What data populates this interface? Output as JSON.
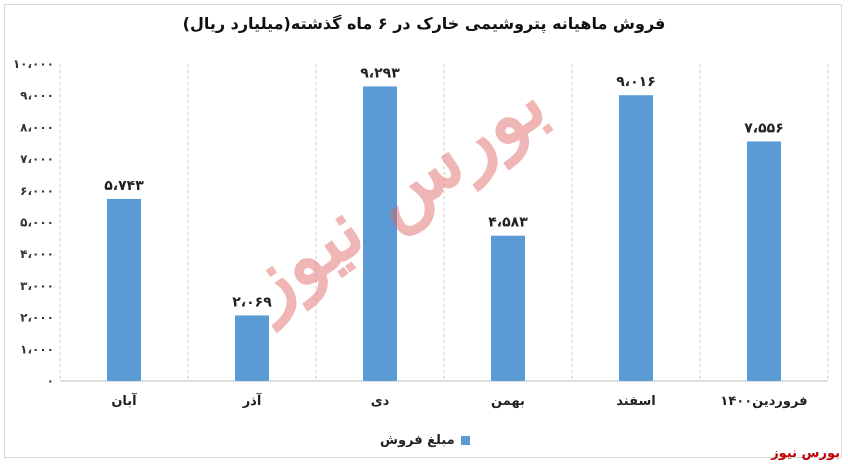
{
  "chart_data": {
    "type": "bar",
    "title": "فروش ماهیانه پتروشیمی خارک در ۶ ماه گذشته(میلیارد ریال)",
    "categories": [
      "آبان",
      "آذر",
      "دی",
      "بهمن",
      "اسفند",
      "فروردین۱۴۰۰"
    ],
    "series": [
      {
        "name": "مبلغ فروش",
        "values": [
          5743,
          2069,
          9293,
          4583,
          9016,
          7556
        ]
      }
    ],
    "data_labels": [
      "۵،۷۴۳",
      "۲،۰۶۹",
      "۹،۲۹۳",
      "۴،۵۸۳",
      "۹،۰۱۶",
      "۷،۵۵۶"
    ],
    "yticks": [
      0,
      1000,
      2000,
      3000,
      4000,
      5000,
      6000,
      7000,
      8000,
      9000,
      10000
    ],
    "ytick_labels": [
      "۰",
      "۱،۰۰۰",
      "۲،۰۰۰",
      "۳،۰۰۰",
      "۴،۰۰۰",
      "۵،۰۰۰",
      "۶،۰۰۰",
      "۷،۰۰۰",
      "۸،۰۰۰",
      "۹،۰۰۰",
      "۱۰،۰۰۰"
    ],
    "ylim": [
      0,
      10000
    ],
    "grid": "vertical dashed",
    "legend_position": "bottom",
    "bar_color": "#5b9bd5"
  },
  "watermark": "بورس نیوز",
  "source": "بورس نیوز"
}
